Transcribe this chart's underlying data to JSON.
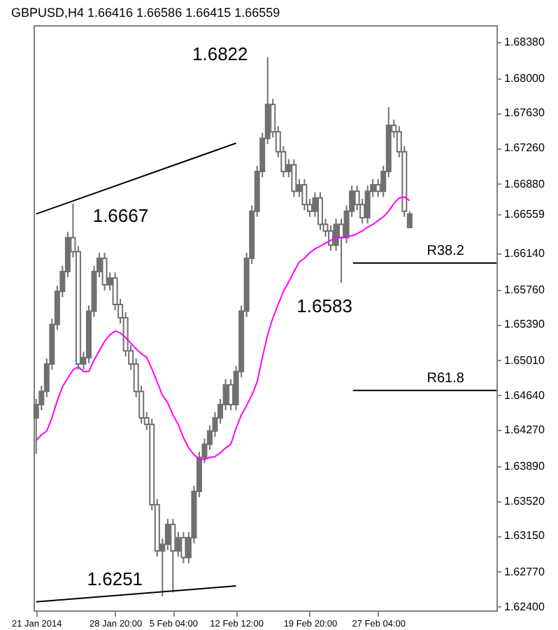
{
  "chart_data": {
    "type": "candlestick",
    "title": "GBPUSD,H4  1.66416 1.66586 1.66415 1.66559",
    "categories": [
      "21 Jan 2014",
      null,
      null,
      null,
      null,
      null,
      null,
      null,
      null,
      null,
      null,
      null,
      null,
      null,
      null,
      "28 Jan 20:00",
      null,
      null,
      null,
      null,
      null,
      null,
      null,
      null,
      null,
      null,
      "5 Feb 04:00",
      null,
      null,
      null,
      null,
      null,
      null,
      null,
      null,
      null,
      null,
      null,
      "12 Feb 12:00",
      null,
      null,
      null,
      null,
      null,
      null,
      null,
      null,
      null,
      null,
      null,
      null,
      null,
      "19 Feb 20:00",
      null,
      null,
      null,
      null,
      null,
      null,
      null,
      null,
      null,
      null,
      null,
      null,
      "27 Feb 04:00",
      null,
      null,
      null,
      null,
      null,
      null,
      null,
      null,
      null,
      null,
      null,
      null,
      null,
      null,
      null,
      null,
      null,
      null,
      null,
      null,
      null,
      null
    ],
    "color": "#707070",
    "ohlc": [
      [
        1.644,
        1.646,
        1.6402,
        1.6454
      ],
      [
        1.6454,
        1.6474,
        1.6448,
        1.6468
      ],
      [
        1.6468,
        1.6503,
        1.6462,
        1.6497
      ],
      [
        1.6497,
        1.6545,
        1.6491,
        1.6539
      ],
      [
        1.6539,
        1.658,
        1.6533,
        1.6574
      ],
      [
        1.6574,
        1.6601,
        1.6568,
        1.6595
      ],
      [
        1.6595,
        1.6637,
        1.6589,
        1.6631
      ],
      [
        1.6631,
        1.6667,
        1.661,
        1.6616
      ],
      [
        1.6616,
        1.6622,
        1.6491,
        1.6497
      ],
      [
        1.6497,
        1.651,
        1.6491,
        1.6504
      ],
      [
        1.6504,
        1.6559,
        1.6498,
        1.6553
      ],
      [
        1.6553,
        1.6601,
        1.6547,
        1.6595
      ],
      [
        1.6595,
        1.6615,
        1.6589,
        1.6609
      ],
      [
        1.6609,
        1.6615,
        1.6575,
        1.6581
      ],
      [
        1.6581,
        1.6594,
        1.6575,
        1.6588
      ],
      [
        1.6588,
        1.6594,
        1.6554,
        1.656
      ],
      [
        1.656,
        1.6566,
        1.654,
        1.6546
      ],
      [
        1.6546,
        1.6552,
        1.6505,
        1.6511
      ],
      [
        1.6511,
        1.6517,
        1.6491,
        1.6497
      ],
      [
        1.6497,
        1.6503,
        1.6462,
        1.6468
      ],
      [
        1.6468,
        1.6474,
        1.6434,
        1.644
      ],
      [
        1.644,
        1.6446,
        1.6427,
        1.6433
      ],
      [
        1.6433,
        1.6439,
        1.6342,
        1.6348
      ],
      [
        1.6348,
        1.6354,
        1.6293,
        1.6299
      ],
      [
        1.6299,
        1.6312,
        1.6251,
        1.6306
      ],
      [
        1.6306,
        1.6333,
        1.63,
        1.6327
      ],
      [
        1.6327,
        1.6333,
        1.6255,
        1.6299
      ],
      [
        1.6299,
        1.6319,
        1.6293,
        1.6313
      ],
      [
        1.6313,
        1.6319,
        1.6286,
        1.6292
      ],
      [
        1.6292,
        1.6319,
        1.6286,
        1.6313
      ],
      [
        1.6313,
        1.6368,
        1.6307,
        1.6362
      ],
      [
        1.6362,
        1.6404,
        1.6356,
        1.6398
      ],
      [
        1.6398,
        1.6418,
        1.6392,
        1.6412
      ],
      [
        1.6412,
        1.6432,
        1.6406,
        1.6426
      ],
      [
        1.6426,
        1.6446,
        1.642,
        1.644
      ],
      [
        1.644,
        1.646,
        1.6434,
        1.6454
      ],
      [
        1.6454,
        1.6481,
        1.6448,
        1.6475
      ],
      [
        1.6475,
        1.6481,
        1.6448,
        1.6454
      ],
      [
        1.6454,
        1.6495,
        1.6448,
        1.6489
      ],
      [
        1.6489,
        1.6559,
        1.6483,
        1.6553
      ],
      [
        1.6553,
        1.6615,
        1.6547,
        1.6609
      ],
      [
        1.6609,
        1.6665,
        1.6603,
        1.6659
      ],
      [
        1.6659,
        1.6707,
        1.6653,
        1.6701
      ],
      [
        1.6701,
        1.6742,
        1.6695,
        1.6736
      ],
      [
        1.6736,
        1.6822,
        1.673,
        1.6772
      ],
      [
        1.6772,
        1.6778,
        1.6737,
        1.6743
      ],
      [
        1.6743,
        1.6749,
        1.6716,
        1.6722
      ],
      [
        1.6722,
        1.6728,
        1.6695,
        1.6701
      ],
      [
        1.6701,
        1.6714,
        1.6695,
        1.6708
      ],
      [
        1.6708,
        1.6714,
        1.6674,
        1.668
      ],
      [
        1.668,
        1.6693,
        1.6674,
        1.6687
      ],
      [
        1.6687,
        1.6693,
        1.666,
        1.6666
      ],
      [
        1.6666,
        1.6672,
        1.6653,
        1.6659
      ],
      [
        1.6659,
        1.6679,
        1.6653,
        1.6673
      ],
      [
        1.6673,
        1.6679,
        1.6639,
        1.6645
      ],
      [
        1.6645,
        1.6651,
        1.6632,
        1.6638
      ],
      [
        1.6638,
        1.6644,
        1.6617,
        1.6623
      ],
      [
        1.6623,
        1.6651,
        1.6617,
        1.6645
      ],
      [
        1.6645,
        1.6651,
        1.6583,
        1.6631
      ],
      [
        1.6631,
        1.6665,
        1.6625,
        1.6659
      ],
      [
        1.6659,
        1.6686,
        1.6653,
        1.668
      ],
      [
        1.668,
        1.6686,
        1.666,
        1.6666
      ],
      [
        1.6666,
        1.6672,
        1.6646,
        1.6652
      ],
      [
        1.6652,
        1.6686,
        1.6646,
        1.668
      ],
      [
        1.668,
        1.6693,
        1.6674,
        1.6687
      ],
      [
        1.6687,
        1.6693,
        1.6674,
        1.668
      ],
      [
        1.668,
        1.6707,
        1.6674,
        1.6701
      ],
      [
        1.6701,
        1.6769,
        1.6695,
        1.675
      ],
      [
        1.675,
        1.6756,
        1.6737,
        1.6743
      ],
      [
        1.6743,
        1.6749,
        1.6716,
        1.6722
      ],
      [
        1.6722,
        1.6728,
        1.6653,
        1.6659
      ],
      [
        1.66416,
        1.66586,
        1.66415,
        1.66559
      ],
      null,
      null,
      null,
      null,
      null,
      null,
      null,
      null,
      null,
      null,
      null,
      null,
      null,
      null,
      null,
      null
    ],
    "series": [
      {
        "type": "line",
        "color": "#ff00ff",
        "values": [
          1.6416,
          1.6422,
          1.6426,
          1.644,
          1.6458,
          1.6473,
          1.6482,
          1.6491,
          1.6494,
          1.6489,
          1.6489,
          1.6501,
          1.6511,
          1.6521,
          1.6528,
          1.6532,
          1.653,
          1.6525,
          1.6519,
          1.6513,
          1.6508,
          1.6504,
          1.6492,
          1.6478,
          1.6464,
          1.6456,
          1.6443,
          1.6433,
          1.6419,
          1.6408,
          1.6401,
          1.6396,
          1.6396,
          1.6398,
          1.6399,
          1.6403,
          1.6408,
          1.6412,
          1.6429,
          1.6443,
          1.6453,
          1.6464,
          1.6478,
          1.6504,
          1.6528,
          1.6546,
          1.656,
          1.6574,
          1.6584,
          1.6595,
          1.6605,
          1.6609,
          1.6615,
          1.6619,
          1.6622,
          1.6625,
          1.6628,
          1.6631,
          1.6631,
          1.6632,
          1.6633,
          1.6635,
          1.6638,
          1.6642,
          1.6645,
          1.6649,
          1.6653,
          1.6659,
          1.6667,
          1.6673,
          1.6674,
          1.667,
          null,
          null,
          null,
          null,
          null,
          null,
          null,
          null,
          null,
          null,
          null,
          null,
          null,
          null,
          null,
          null
        ]
      },
      {
        "type": "line",
        "color": "#000000",
        "x": [
          "21 Jan 2014",
          "12 Feb 12:00"
        ],
        "values": [
          1.6656,
          1.6731
        ]
      },
      {
        "type": "line",
        "color": "#000000",
        "x": [
          "21 Jan 2014",
          "12 Feb 12:00"
        ],
        "values": [
          1.6245,
          1.6262
        ]
      }
    ],
    "ref_lines": [
      {
        "axis": "y",
        "value": 1.6604,
        "label": "R38.2",
        "color": "#000000"
      },
      {
        "axis": "y",
        "value": 1.6469,
        "label": "R61.8",
        "color": "#000000"
      }
    ],
    "annotations": [
      "1.6822",
      "1.6667",
      "1.6583",
      "1.6251"
    ],
    "ylim": [
      1.6236,
      1.6856
    ],
    "yticks": [
      {
        "value": 1.6838,
        "label": "1.68380"
      },
      {
        "value": 1.68,
        "label": "1.68000"
      },
      {
        "value": 1.6763,
        "label": "1.67630"
      },
      {
        "value": 1.6726,
        "label": "1.67260"
      },
      {
        "value": 1.6688,
        "label": "1.66880"
      },
      {
        "value": 1.66559,
        "label": "1.66559"
      },
      {
        "value": 1.6614,
        "label": "1.66140"
      },
      {
        "value": 1.6576,
        "label": "1.65760"
      },
      {
        "value": 1.6539,
        "label": "1.65390"
      },
      {
        "value": 1.6501,
        "label": "1.65010"
      },
      {
        "value": 1.6464,
        "label": "1.64640"
      },
      {
        "value": 1.6427,
        "label": "1.64270"
      },
      {
        "value": 1.6389,
        "label": "1.63890"
      },
      {
        "value": 1.6352,
        "label": "1.63520"
      },
      {
        "value": 1.6315,
        "label": "1.63150"
      },
      {
        "value": 1.6277,
        "label": "1.62770"
      },
      {
        "value": 1.624,
        "label": "1.62400"
      }
    ],
    "grid": false
  }
}
